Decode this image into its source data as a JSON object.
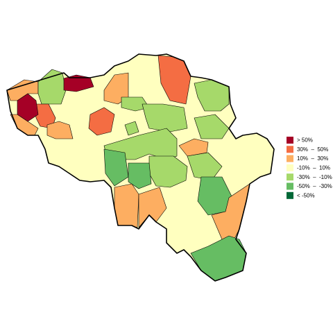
{
  "legend": {
    "items": [
      {
        "label": "> 50%",
        "color": "#a50026"
      },
      {
        "label": "30%  –  50%",
        "color": "#f46d43"
      },
      {
        "label": "10%  –  30%",
        "color": "#fdae61"
      },
      {
        "label": "-10%  –  10%",
        "color": "#ffffbf"
      },
      {
        "label": "-30%  –  -10%",
        "color": "#a6d96a"
      },
      {
        "label": "-50%  –  -30%",
        "color": "#66bd63"
      },
      {
        "label": "< -50%",
        "color": "#006837"
      }
    ]
  }
}
